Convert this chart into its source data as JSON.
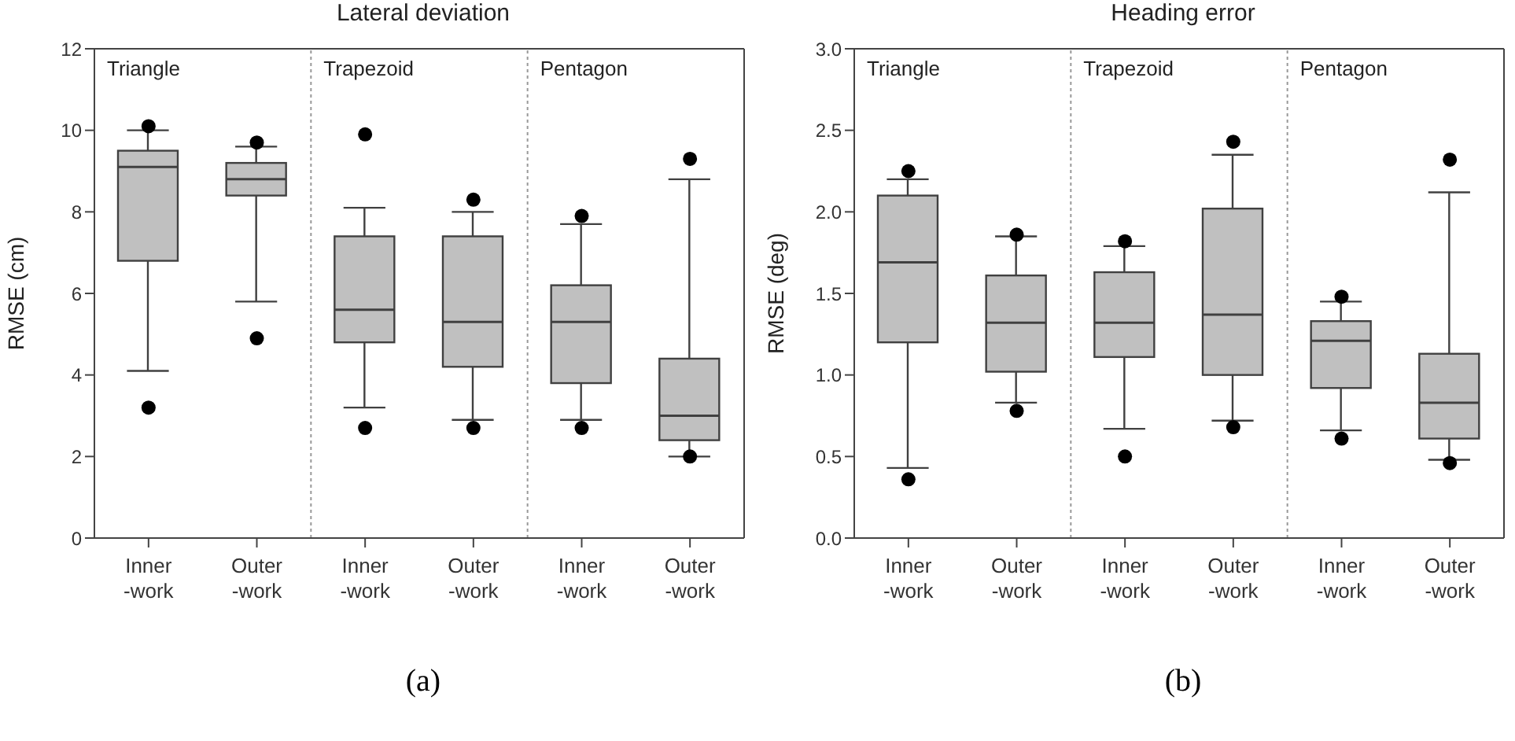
{
  "chart_data": [
    {
      "type": "box",
      "title": "Lateral deviation",
      "ylabel": "RMSE (cm)",
      "categories": [
        "Inner\n-work",
        "Outer\n-work",
        "Inner\n-work",
        "Outer\n-work",
        "Inner\n-work",
        "Outer\n-work"
      ],
      "color": "#c0c0c0",
      "ylim": [
        0,
        12
      ],
      "yticks": [
        0,
        2,
        4,
        6,
        8,
        10,
        12
      ],
      "boxes": [
        {
          "low": 4.1,
          "q1": 6.8,
          "median": 9.1,
          "q3": 9.5,
          "high": 10.0,
          "outliers": [
            10.1,
            3.2
          ]
        },
        {
          "low": 5.8,
          "q1": 8.4,
          "median": 8.8,
          "q3": 9.2,
          "high": 9.6,
          "outliers": [
            9.7,
            4.9
          ]
        },
        {
          "low": 3.2,
          "q1": 4.8,
          "median": 5.6,
          "q3": 7.4,
          "high": 8.1,
          "outliers": [
            9.9,
            2.7
          ]
        },
        {
          "low": 2.9,
          "q1": 4.2,
          "median": 5.3,
          "q3": 7.4,
          "high": 8.0,
          "outliers": [
            8.3,
            2.7
          ]
        },
        {
          "low": 2.9,
          "q1": 3.8,
          "median": 5.3,
          "q3": 6.2,
          "high": 7.7,
          "outliers": [
            7.9,
            2.7
          ]
        },
        {
          "low": 2.0,
          "q1": 2.4,
          "median": 3.0,
          "q3": 4.4,
          "high": 8.8,
          "outliers": [
            9.3,
            2.0
          ]
        }
      ],
      "annotations": [
        "Triangle",
        "Trapezoid",
        "Pentagon",
        "(a)"
      ]
    },
    {
      "type": "box",
      "title": "Heading error",
      "ylabel": "RMSE (deg)",
      "categories": [
        "Inner\n-work",
        "Outer\n-work",
        "Inner\n-work",
        "Outer\n-work",
        "Inner\n-work",
        "Outer\n-work"
      ],
      "color": "#c0c0c0",
      "ylim": [
        0,
        3
      ],
      "yticks": [
        {
          "value": 0,
          "label": "0.0"
        },
        {
          "value": 0.5,
          "label": "0.5"
        },
        {
          "value": 1,
          "label": "1.0"
        },
        {
          "value": 1.5,
          "label": "1.5"
        },
        {
          "value": 2,
          "label": "2.0"
        },
        {
          "value": 2.5,
          "label": "2.5"
        },
        {
          "value": 3,
          "label": "3.0"
        }
      ],
      "boxes": [
        {
          "low": 0.43,
          "q1": 1.2,
          "median": 1.69,
          "q3": 2.1,
          "high": 2.2,
          "outliers": [
            2.25,
            0.36
          ]
        },
        {
          "low": 0.83,
          "q1": 1.02,
          "median": 1.32,
          "q3": 1.61,
          "high": 1.85,
          "outliers": [
            1.86,
            0.78
          ]
        },
        {
          "low": 0.67,
          "q1": 1.11,
          "median": 1.32,
          "q3": 1.63,
          "high": 1.79,
          "outliers": [
            1.82,
            0.5
          ]
        },
        {
          "low": 0.72,
          "q1": 1.0,
          "median": 1.37,
          "q3": 2.02,
          "high": 2.35,
          "outliers": [
            2.43,
            0.68
          ]
        },
        {
          "low": 0.66,
          "q1": 0.92,
          "median": 1.21,
          "q3": 1.33,
          "high": 1.45,
          "outliers": [
            1.48,
            0.61
          ]
        },
        {
          "low": 0.48,
          "q1": 0.61,
          "median": 0.83,
          "q3": 1.13,
          "high": 2.12,
          "outliers": [
            2.32,
            0.46
          ]
        }
      ],
      "annotations": [
        "Triangle",
        "Trapezoid",
        "Pentagon",
        "(b)"
      ]
    }
  ]
}
